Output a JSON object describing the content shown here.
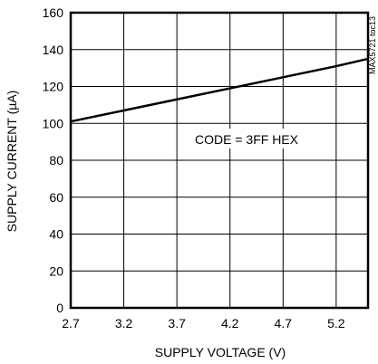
{
  "chart_data": {
    "type": "line",
    "xlabel": "SUPPLY VOLTAGE (V)",
    "ylabel": "SUPPLY CURRENT (µA)",
    "xlim": [
      2.7,
      5.5
    ],
    "ylim": [
      0,
      160
    ],
    "x_ticks": [
      "2.7",
      "3.2",
      "3.7",
      "4.2",
      "4.7",
      "5.2"
    ],
    "y_ticks": [
      "0",
      "20",
      "40",
      "60",
      "80",
      "100",
      "120",
      "140",
      "160"
    ],
    "grid": true,
    "series": [
      {
        "x": [
          2.7,
          3.2,
          3.7,
          4.2,
          4.7,
          5.2,
          5.5
        ],
        "y": [
          101,
          107,
          113,
          119,
          125,
          131,
          135
        ]
      }
    ],
    "annotations": [
      {
        "text": "CODE = 3FF HEX"
      }
    ],
    "side_label": "MAX5721 toc13"
  }
}
